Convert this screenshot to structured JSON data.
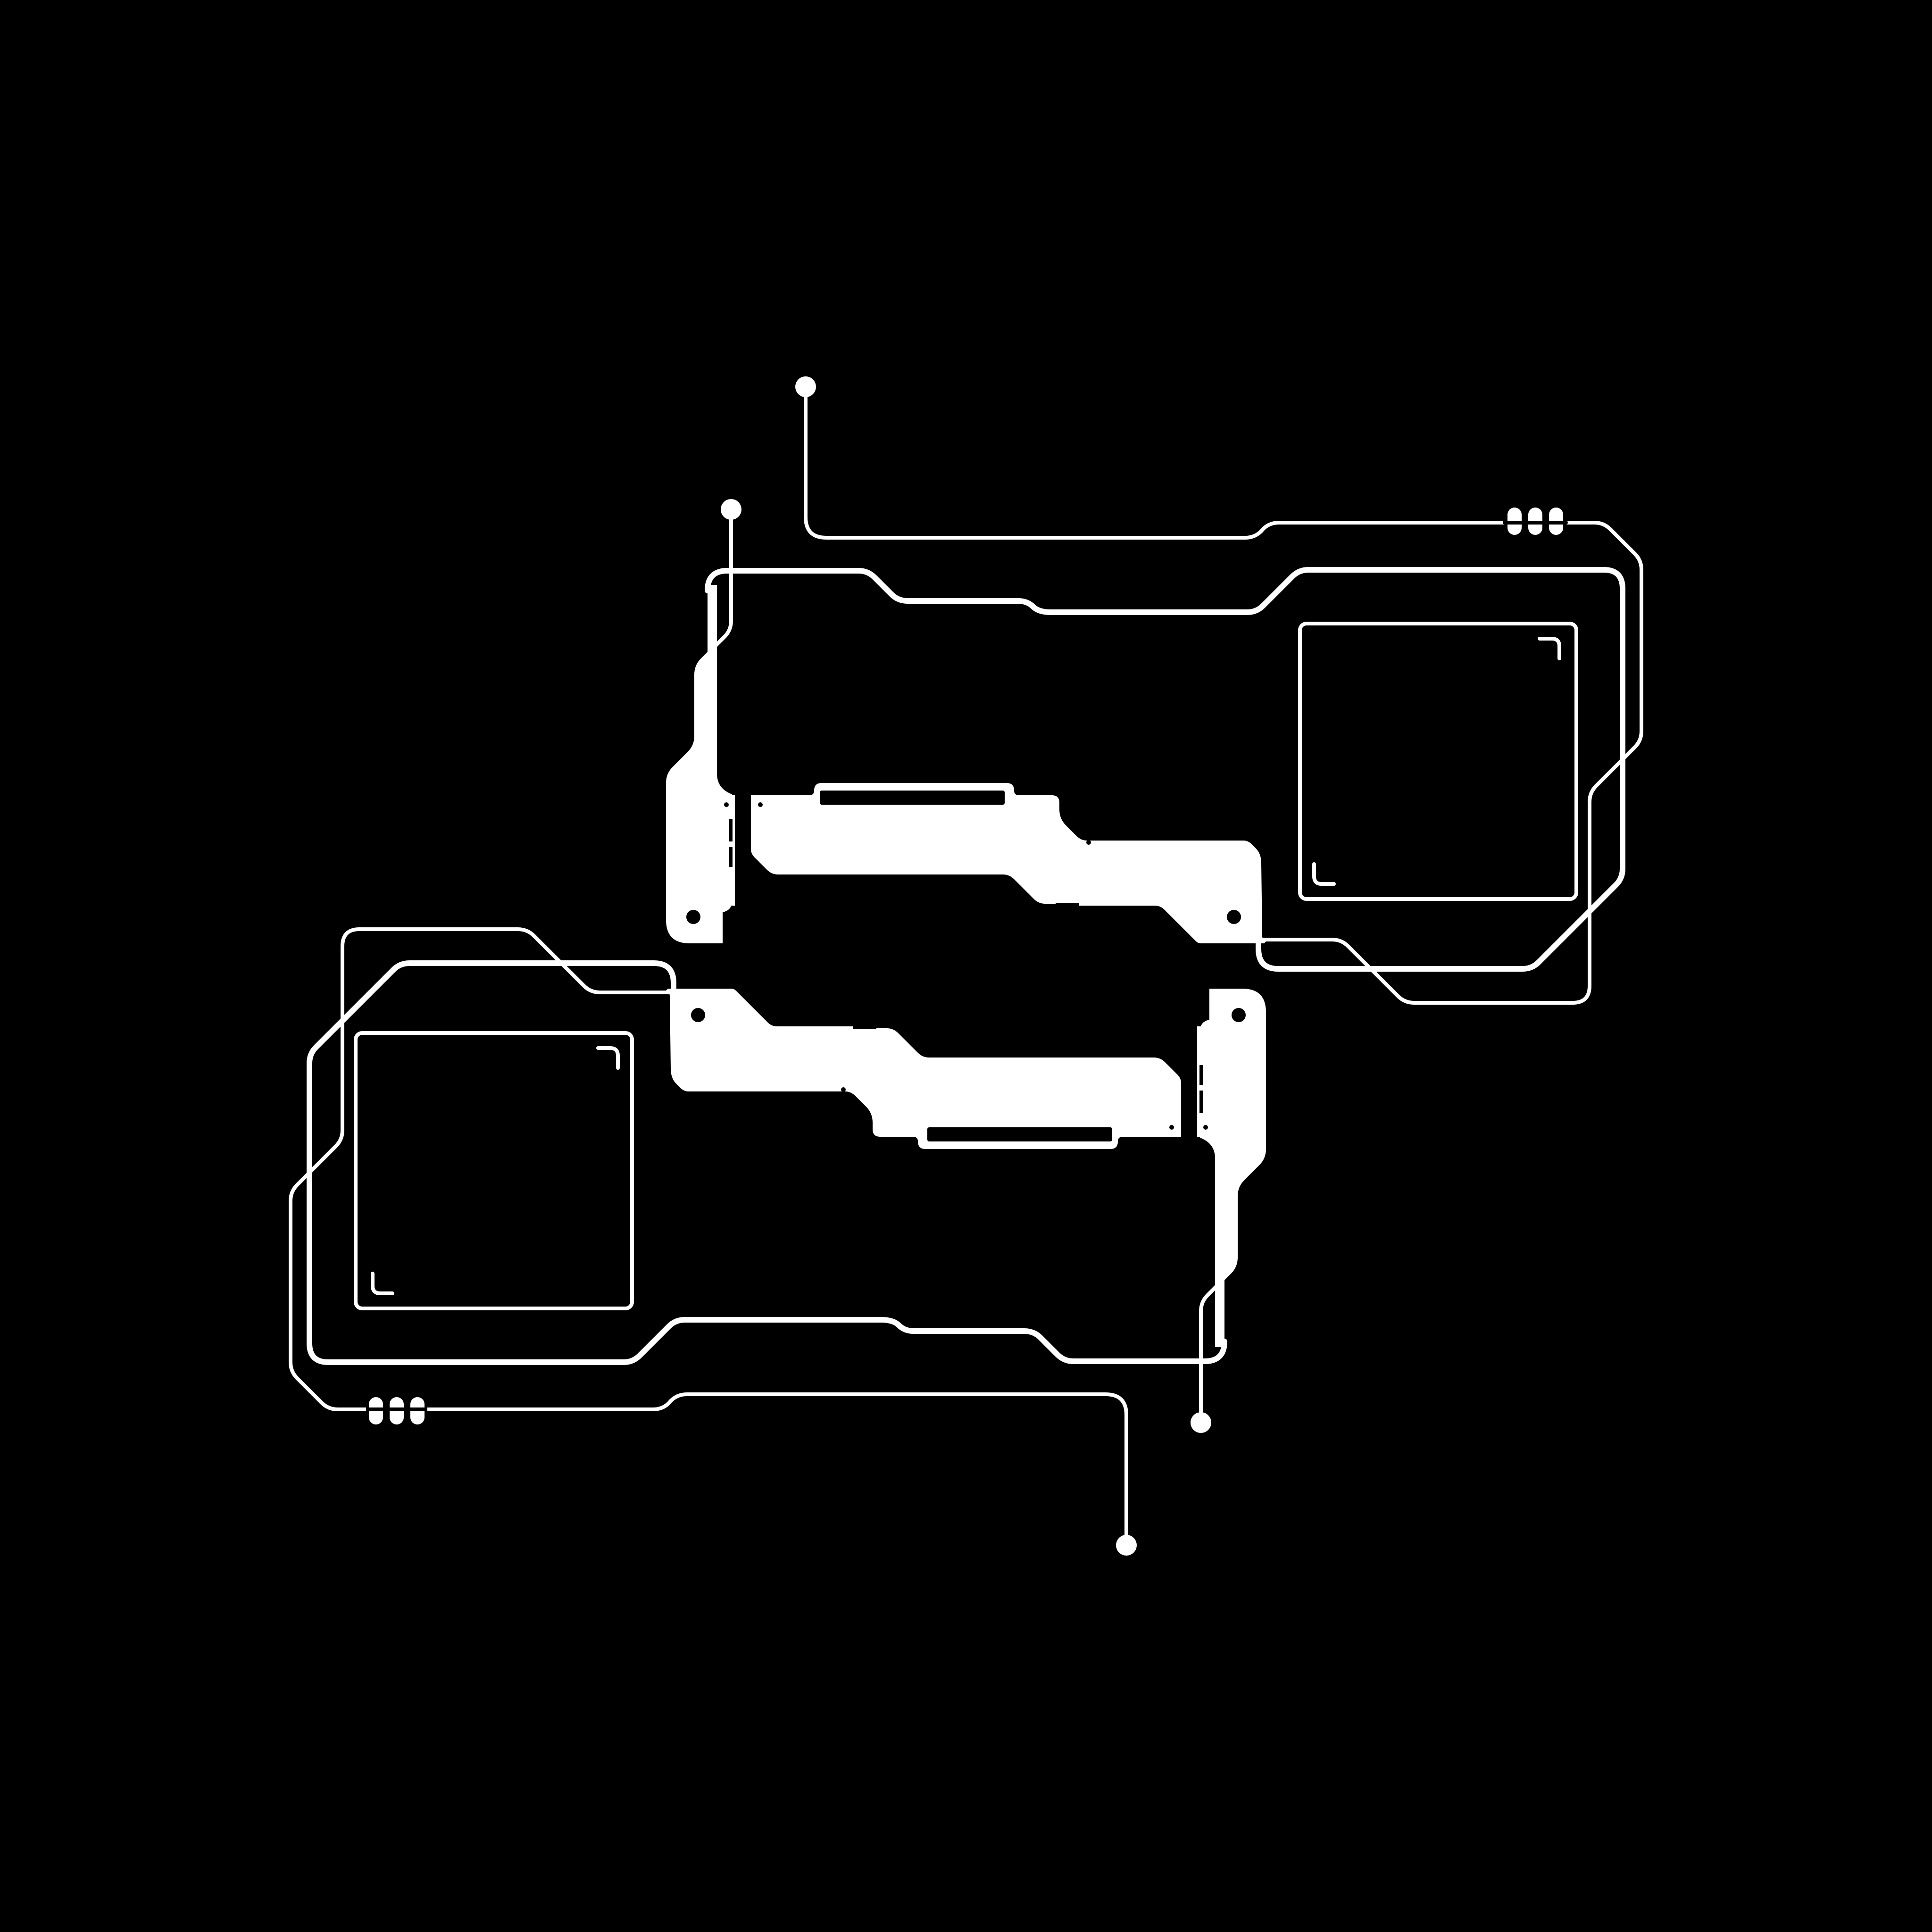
{
  "colors": {
    "background": "#000000",
    "foreground": "#ffffff"
  },
  "icons": {
    "upper_terminal_dots": "circle-node-icon",
    "lower_terminal_dots": "circle-node-icon",
    "pill_indicators": "triple-pill-indicator-icon",
    "corner_brackets": "corner-bracket-icon"
  }
}
